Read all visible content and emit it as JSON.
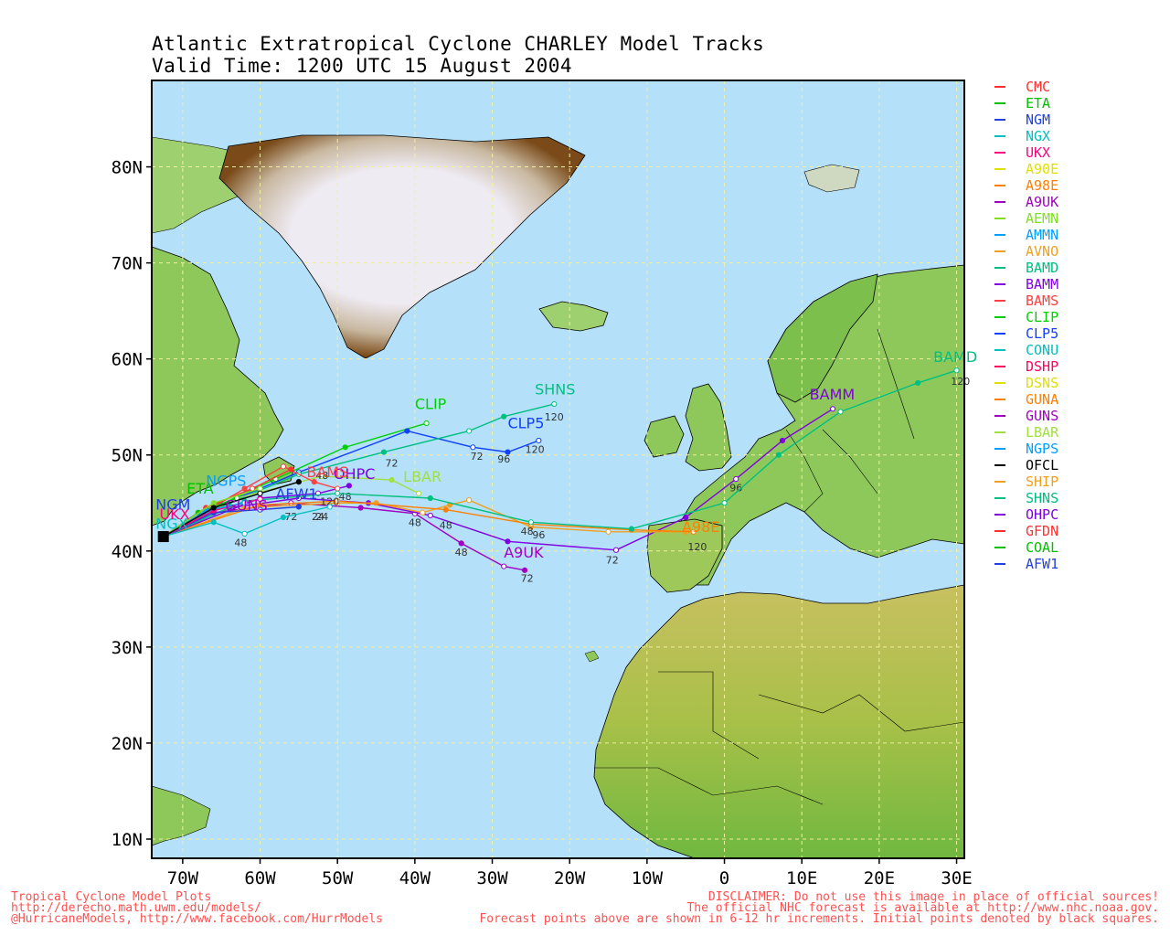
{
  "title": {
    "line1": "Atlantic Extratropical Cyclone CHARLEY Model Tracks",
    "line2": "Valid Time: 1200 UTC 15 August 2004"
  },
  "axes": {
    "lat_labels": [
      "80N",
      "70N",
      "60N",
      "50N",
      "40N",
      "30N",
      "20N",
      "10N"
    ],
    "lat_values": [
      80,
      70,
      60,
      50,
      40,
      30,
      20,
      10
    ],
    "lon_labels": [
      "70W",
      "60W",
      "50W",
      "40W",
      "30W",
      "20W",
      "10W",
      "0",
      "10E",
      "20E",
      "30E"
    ],
    "lon_values": [
      -70,
      -60,
      -50,
      -40,
      -30,
      -20,
      -10,
      0,
      10,
      20,
      30
    ],
    "lon_range": [
      -74,
      31
    ],
    "lat_range": [
      8,
      89
    ]
  },
  "colors": {
    "ocean": "#b4e0fa",
    "grid": "#f0f0a0",
    "land": "#8ec85a",
    "ice": "#efebf3",
    "ice_edge": "#8a5a20"
  },
  "legend": [
    {
      "name": "CMC",
      "color": "#ff3030"
    },
    {
      "name": "ETA",
      "color": "#00c000"
    },
    {
      "name": "NGM",
      "color": "#2040e0"
    },
    {
      "name": "NGX",
      "color": "#00c0c0"
    },
    {
      "name": "UKX",
      "color": "#ff0080"
    },
    {
      "name": "A90E",
      "color": "#e0e000"
    },
    {
      "name": "A98E",
      "color": "#ff8000"
    },
    {
      "name": "A9UK",
      "color": "#a000c0"
    },
    {
      "name": "AEMN",
      "color": "#80e020"
    },
    {
      "name": "AMMN",
      "color": "#00a0ff"
    },
    {
      "name": "AVNO",
      "color": "#f0a020"
    },
    {
      "name": "BAMD",
      "color": "#00c080"
    },
    {
      "name": "BAMM",
      "color": "#8000e0"
    },
    {
      "name": "BAMS",
      "color": "#ff4040"
    },
    {
      "name": "CLIP",
      "color": "#00d000"
    },
    {
      "name": "CLP5",
      "color": "#1040ff"
    },
    {
      "name": "CONU",
      "color": "#00c0c0"
    },
    {
      "name": "DSHP",
      "color": "#ff0060"
    },
    {
      "name": "DSNS",
      "color": "#e0e000"
    },
    {
      "name": "GUNA",
      "color": "#ff8000"
    },
    {
      "name": "GUNS",
      "color": "#a000c0"
    },
    {
      "name": "LBAR",
      "color": "#a0e040"
    },
    {
      "name": "NGPS",
      "color": "#00a0ff"
    },
    {
      "name": "OFCL",
      "color": "#000000"
    },
    {
      "name": "SHIP",
      "color": "#f0a020"
    },
    {
      "name": "SHNS",
      "color": "#00c080"
    },
    {
      "name": "OHPC",
      "color": "#8000e0"
    },
    {
      "name": "GFDN",
      "color": "#ff3030"
    },
    {
      "name": "COAL",
      "color": "#00c000"
    },
    {
      "name": "AFW1",
      "color": "#2040e0"
    }
  ],
  "tracks": [
    {
      "name": "CLIP",
      "color": "#00d000",
      "points": [
        [
          -72.5,
          41.5
        ],
        [
          -66,
          44.5
        ],
        [
          -58,
          47.5
        ],
        [
          -49,
          50.8
        ],
        [
          -38.5,
          53.3
        ]
      ]
    },
    {
      "name": "CLP5",
      "color": "#1040ff",
      "points": [
        [
          -72.5,
          41.5
        ],
        [
          -65,
          44.8
        ],
        [
          -55,
          48.2
        ],
        [
          -41,
          52.5
        ],
        [
          -32.5,
          50.8
        ],
        [
          -28,
          50.3
        ],
        [
          -24,
          51.5
        ]
      ],
      "ticks": [
        {
          "text": "72",
          "at": [
            -32,
            49.5
          ]
        },
        {
          "text": "96",
          "at": [
            -28.5,
            49.2
          ]
        },
        {
          "text": "120",
          "at": [
            -24.5,
            50.2
          ]
        }
      ]
    },
    {
      "name": "SHNS",
      "color": "#00c080",
      "points": [
        [
          -72.5,
          41.5
        ],
        [
          -64,
          45
        ],
        [
          -55,
          48
        ],
        [
          -44,
          50.3
        ],
        [
          -33,
          52.5
        ],
        [
          -28.5,
          54
        ],
        [
          -22,
          55.3
        ]
      ],
      "ticks": [
        {
          "text": "72",
          "at": [
            -43,
            48.8
          ]
        },
        {
          "text": "120",
          "at": [
            -22,
            53.6
          ]
        }
      ]
    },
    {
      "name": "A9UK",
      "color": "#a000c0",
      "points": [
        [
          -72.5,
          41.5
        ],
        [
          -66,
          44
        ],
        [
          -56,
          45
        ],
        [
          -47,
          44.5
        ],
        [
          -40,
          43.9
        ],
        [
          -34,
          40.8
        ],
        [
          -28.5,
          38.4
        ],
        [
          -25.8,
          38
        ]
      ],
      "ticks": [
        {
          "text": "48",
          "at": [
            -34,
            39.5
          ]
        },
        {
          "text": "72",
          "at": [
            -25.5,
            36.8
          ]
        }
      ]
    },
    {
      "name": "BAMM",
      "color": "#8000e0",
      "points": [
        [
          -72.5,
          41.5
        ],
        [
          -64,
          44.5
        ],
        [
          -55,
          45.5
        ],
        [
          -46,
          45
        ],
        [
          -38,
          43.7
        ],
        [
          -28,
          41
        ],
        [
          -14,
          40.1
        ],
        [
          -5,
          43.5
        ],
        [
          1.5,
          47.5
        ],
        [
          7.5,
          51.5
        ],
        [
          14,
          54.8
        ]
      ],
      "ticks": [
        {
          "text": "48",
          "at": [
            -36,
            42.3
          ]
        },
        {
          "text": "72",
          "at": [
            -14.5,
            38.7
          ]
        },
        {
          "text": "96",
          "at": [
            1.5,
            46.2
          ]
        }
      ]
    },
    {
      "name": "SHIP",
      "color": "#f0a020",
      "points": [
        [
          -72.5,
          41.5
        ],
        [
          -62,
          44.5
        ],
        [
          -50,
          45
        ],
        [
          -45,
          45
        ],
        [
          -39,
          44
        ],
        [
          -35.5,
          44.8
        ],
        [
          -33,
          45.3
        ],
        [
          -25,
          42.5
        ],
        [
          -15,
          42
        ],
        [
          -5,
          42
        ]
      ],
      "ticks": [
        {
          "text": "48",
          "at": [
            -40,
            42.6
          ]
        },
        {
          "text": "120",
          "at": [
            -3.5,
            40.1
          ]
        }
      ]
    },
    {
      "name": "GUNA",
      "color": "#ff8000",
      "points": [
        [
          -72.5,
          41.5
        ],
        [
          -60,
          44.8
        ],
        [
          -50,
          45.2
        ],
        [
          -36,
          44.3
        ],
        [
          -25,
          42.8
        ],
        [
          -12,
          42.2
        ],
        [
          -4,
          42
        ]
      ]
    },
    {
      "name": "LBAR",
      "color": "#a0e040",
      "points": [
        [
          -72.5,
          41.5
        ],
        [
          -63,
          45.5
        ],
        [
          -52,
          47.8
        ],
        [
          -43,
          47.4
        ],
        [
          -39.5,
          46
        ]
      ]
    },
    {
      "name": "OHPC",
      "color": "#8000e0",
      "points": [
        [
          -72.5,
          41.5
        ],
        [
          -60,
          45.5
        ],
        [
          -52.5,
          46
        ],
        [
          -48.5,
          46.8
        ]
      ],
      "ticks": [
        {
          "text": "48",
          "at": [
            -49,
            45.3
          ]
        }
      ]
    },
    {
      "name": "BAMS",
      "color": "#ff4040",
      "points": [
        [
          -72.5,
          41.5
        ],
        [
          -62,
          46.5
        ],
        [
          -57,
          48.8
        ],
        [
          -53,
          47.2
        ],
        [
          -50,
          46.5
        ]
      ],
      "ticks": [
        {
          "text": "120",
          "at": [
            -51,
            44.8
          ]
        }
      ]
    },
    {
      "name": "BAMD",
      "color": "#00c080",
      "points": [
        [
          -72.5,
          41.5
        ],
        [
          -62,
          45.2
        ],
        [
          -50,
          46
        ],
        [
          -38,
          45.5
        ],
        [
          -25,
          43
        ],
        [
          -12,
          42.3
        ],
        [
          0,
          45
        ],
        [
          7,
          50
        ],
        [
          15,
          54.5
        ],
        [
          25,
          57.5
        ],
        [
          30,
          58.8
        ]
      ],
      "ticks": [
        {
          "text": "48",
          "at": [
            -25.5,
            41.7
          ]
        },
        {
          "text": "96",
          "at": [
            -24,
            41.3
          ]
        },
        {
          "text": "120",
          "at": [
            30.5,
            57.3
          ]
        }
      ]
    },
    {
      "name": "AFW1",
      "color": "#2040e0",
      "points": [
        [
          -72.5,
          41.5
        ],
        [
          -66,
          44
        ],
        [
          -60,
          44.3
        ],
        [
          -55,
          44.6
        ]
      ],
      "ticks": [
        {
          "text": "72",
          "at": [
            -56,
            43.2
          ]
        }
      ]
    },
    {
      "name": "NGX",
      "color": "#00c0c0",
      "points": [
        [
          -72.5,
          41.5
        ],
        [
          -66,
          43
        ],
        [
          -62,
          41.8
        ],
        [
          -57,
          43.5
        ],
        [
          -51,
          44.6
        ]
      ],
      "ticks": [
        {
          "text": "48",
          "at": [
            -62.5,
            40.5
          ]
        },
        {
          "text": "24",
          "at": [
            -52,
            43.2
          ]
        }
      ]
    },
    {
      "name": "ETA",
      "color": "#00c000",
      "points": [
        [
          -72.5,
          41.5
        ],
        [
          -68,
          44
        ],
        [
          -63,
          45.5
        ]
      ]
    },
    {
      "name": "CMC",
      "color": "#ff3030",
      "points": [
        [
          -72.5,
          41.5
        ],
        [
          -67,
          44.5
        ],
        [
          -61,
          46.5
        ],
        [
          -56,
          48.5
        ]
      ]
    },
    {
      "name": "UKX",
      "color": "#ff0080",
      "points": [
        [
          -72.5,
          41.5
        ],
        [
          -66,
          44.2
        ],
        [
          -60,
          45.4
        ]
      ]
    },
    {
      "name": "NGPS",
      "color": "#00a0ff",
      "points": [
        [
          -72.5,
          41.5
        ],
        [
          -67,
          44.2
        ],
        [
          -62,
          45
        ]
      ]
    },
    {
      "name": "AEMN",
      "color": "#80e020",
      "points": [
        [
          -72.5,
          41.5
        ],
        [
          -66,
          45
        ],
        [
          -60,
          46.5
        ]
      ]
    },
    {
      "name": "OFCL",
      "color": "#000000",
      "points": [
        [
          -72.5,
          41.5
        ],
        [
          -66,
          44.5
        ],
        [
          -60,
          46
        ],
        [
          -55,
          47.2
        ]
      ],
      "ticks": [
        {
          "text": "48",
          "at": [
            -52,
            47.5
          ]
        },
        {
          "text": "24",
          "at": [
            -52.5,
            43.2
          ]
        }
      ]
    }
  ],
  "map_labels": [
    {
      "text": "CLIP",
      "color": "#00d000",
      "at": [
        -40,
        54.8
      ]
    },
    {
      "text": "SHNS",
      "color": "#00c080",
      "at": [
        -24.5,
        56.3
      ]
    },
    {
      "text": "CLP5",
      "color": "#1040ff",
      "at": [
        -28,
        52.8
      ]
    },
    {
      "text": "LBAR",
      "color": "#a0e040",
      "at": [
        -41.5,
        47.2
      ]
    },
    {
      "text": "OHPC",
      "color": "#8000e0",
      "at": [
        -50.5,
        47.5
      ]
    },
    {
      "text": "BAMS",
      "color": "#ff4040",
      "at": [
        -54,
        47.7
      ]
    },
    {
      "text": "AFW1",
      "color": "#2040e0",
      "at": [
        -58,
        45.4
      ]
    },
    {
      "text": "A9UK",
      "color": "#a000c0",
      "at": [
        -28.5,
        39.3
      ]
    },
    {
      "text": "A98E",
      "color": "#ff8000",
      "at": [
        -5.5,
        42
      ]
    },
    {
      "text": "BAMM",
      "color": "#8000e0",
      "at": [
        11,
        55.8
      ]
    },
    {
      "text": "BAMD",
      "color": "#00c080",
      "at": [
        27,
        59.7
      ]
    },
    {
      "text": "ETA",
      "color": "#00c000",
      "at": [
        -69.5,
        46
      ]
    },
    {
      "text": "NGPS",
      "color": "#00a0ff",
      "at": [
        -67,
        46.8
      ]
    },
    {
      "text": "NGX",
      "color": "#00c0c0",
      "at": [
        -73.5,
        42.3
      ]
    },
    {
      "text": "GUNS",
      "color": "#a000c0",
      "at": [
        -64.5,
        44.2
      ]
    },
    {
      "text": "UKX",
      "color": "#ff0080",
      "at": [
        -73,
        43.3
      ]
    },
    {
      "text": "NGM",
      "color": "#2040e0",
      "at": [
        -73.5,
        44.3
      ]
    }
  ],
  "footer": {
    "left": "Tropical Cyclone Model Plots\nhttp://derecho.math.uwm.edu/models/\n@HurricaneModels, http://www.facebook.com/HurrModels",
    "right": "DISCLAIMER: Do not use this image in place of official sources!\nThe official NHC forecast is available at http://www.nhc.noaa.gov.\nForecast points above are shown in 6-12 hr increments. Initial points denoted by black squares."
  }
}
